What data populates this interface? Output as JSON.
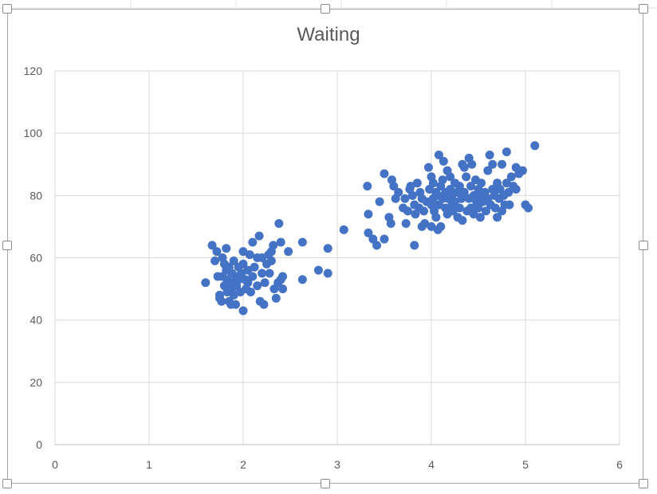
{
  "chart_data": {
    "type": "scatter",
    "title": "Waiting",
    "xlabel": "",
    "ylabel": "",
    "xlim": [
      0,
      6
    ],
    "ylim": [
      0,
      120
    ],
    "x_ticks": [
      "0",
      "1",
      "2",
      "3",
      "4",
      "5",
      "6"
    ],
    "y_ticks": [
      "0",
      "20",
      "40",
      "60",
      "80",
      "100",
      "120"
    ],
    "grid": true,
    "legend": "none",
    "marker_color": "#4472c4",
    "points": [
      [
        1.6,
        52
      ],
      [
        1.67,
        64
      ],
      [
        1.7,
        59
      ],
      [
        1.72,
        62
      ],
      [
        1.73,
        54
      ],
      [
        1.75,
        48
      ],
      [
        1.75,
        47
      ],
      [
        1.77,
        46
      ],
      [
        1.78,
        60
      ],
      [
        1.78,
        54
      ],
      [
        1.8,
        58
      ],
      [
        1.8,
        51
      ],
      [
        1.82,
        56
      ],
      [
        1.82,
        63
      ],
      [
        1.83,
        49
      ],
      [
        1.83,
        53
      ],
      [
        1.85,
        57
      ],
      [
        1.85,
        46
      ],
      [
        1.87,
        45
      ],
      [
        1.87,
        52
      ],
      [
        1.88,
        55
      ],
      [
        1.88,
        50
      ],
      [
        1.9,
        59
      ],
      [
        1.9,
        48
      ],
      [
        1.92,
        54
      ],
      [
        1.92,
        45
      ],
      [
        1.93,
        51
      ],
      [
        1.95,
        57
      ],
      [
        1.95,
        53
      ],
      [
        1.97,
        49
      ],
      [
        1.98,
        55
      ],
      [
        2.0,
        43
      ],
      [
        2.0,
        62
      ],
      [
        2.0,
        58
      ],
      [
        2.02,
        53
      ],
      [
        2.03,
        50
      ],
      [
        2.05,
        56
      ],
      [
        2.05,
        52
      ],
      [
        2.07,
        61
      ],
      [
        2.08,
        49
      ],
      [
        2.1,
        65
      ],
      [
        2.1,
        54
      ],
      [
        2.12,
        57
      ],
      [
        2.15,
        51
      ],
      [
        2.15,
        60
      ],
      [
        2.17,
        67
      ],
      [
        2.18,
        46
      ],
      [
        2.2,
        55
      ],
      [
        2.2,
        60
      ],
      [
        2.22,
        45
      ],
      [
        2.23,
        52
      ],
      [
        2.25,
        58
      ],
      [
        2.27,
        61
      ],
      [
        2.28,
        55
      ],
      [
        2.3,
        62
      ],
      [
        2.3,
        59
      ],
      [
        2.32,
        64
      ],
      [
        2.33,
        50
      ],
      [
        2.35,
        47
      ],
      [
        2.37,
        52
      ],
      [
        2.38,
        71
      ],
      [
        2.4,
        65
      ],
      [
        2.4,
        53
      ],
      [
        2.42,
        50
      ],
      [
        2.42,
        54
      ],
      [
        2.48,
        62
      ],
      [
        2.63,
        65
      ],
      [
        2.63,
        53
      ],
      [
        2.8,
        56
      ],
      [
        2.9,
        63
      ],
      [
        2.9,
        55
      ],
      [
        3.07,
        69
      ],
      [
        3.32,
        83
      ],
      [
        3.33,
        68
      ],
      [
        3.33,
        74
      ],
      [
        3.38,
        66
      ],
      [
        3.42,
        64
      ],
      [
        3.45,
        78
      ],
      [
        3.5,
        87
      ],
      [
        3.5,
        66
      ],
      [
        3.55,
        73
      ],
      [
        3.57,
        71
      ],
      [
        3.58,
        85
      ],
      [
        3.6,
        83
      ],
      [
        3.62,
        79
      ],
      [
        3.65,
        81
      ],
      [
        3.7,
        76
      ],
      [
        3.72,
        79
      ],
      [
        3.73,
        71
      ],
      [
        3.75,
        75
      ],
      [
        3.77,
        82
      ],
      [
        3.78,
        83
      ],
      [
        3.8,
        80
      ],
      [
        3.82,
        64
      ],
      [
        3.82,
        77
      ],
      [
        3.83,
        74
      ],
      [
        3.85,
        84
      ],
      [
        3.87,
        76
      ],
      [
        3.88,
        81
      ],
      [
        3.9,
        79
      ],
      [
        3.9,
        70
      ],
      [
        3.92,
        75
      ],
      [
        3.93,
        71
      ],
      [
        3.95,
        78
      ],
      [
        3.97,
        89
      ],
      [
        3.98,
        82
      ],
      [
        4.0,
        77
      ],
      [
        4.0,
        86
      ],
      [
        4.0,
        70
      ],
      [
        4.02,
        79
      ],
      [
        4.02,
        84
      ],
      [
        4.03,
        75
      ],
      [
        4.05,
        81
      ],
      [
        4.05,
        73
      ],
      [
        4.07,
        69
      ],
      [
        4.07,
        80
      ],
      [
        4.08,
        93
      ],
      [
        4.08,
        77
      ],
      [
        4.1,
        83
      ],
      [
        4.1,
        70
      ],
      [
        4.12,
        79
      ],
      [
        4.12,
        85
      ],
      [
        4.13,
        91
      ],
      [
        4.15,
        76
      ],
      [
        4.15,
        81
      ],
      [
        4.17,
        88
      ],
      [
        4.17,
        74
      ],
      [
        4.18,
        79
      ],
      [
        4.2,
        82
      ],
      [
        4.2,
        86
      ],
      [
        4.22,
        77
      ],
      [
        4.22,
        80
      ],
      [
        4.23,
        75
      ],
      [
        4.25,
        84
      ],
      [
        4.25,
        78
      ],
      [
        4.27,
        81
      ],
      [
        4.28,
        73
      ],
      [
        4.3,
        76
      ],
      [
        4.3,
        83
      ],
      [
        4.32,
        79
      ],
      [
        4.33,
        72
      ],
      [
        4.33,
        90
      ],
      [
        4.35,
        89
      ],
      [
        4.35,
        81
      ],
      [
        4.37,
        86
      ],
      [
        4.38,
        75
      ],
      [
        4.4,
        92
      ],
      [
        4.4,
        79
      ],
      [
        4.42,
        83
      ],
      [
        4.42,
        76
      ],
      [
        4.43,
        90
      ],
      [
        4.45,
        80
      ],
      [
        4.45,
        74
      ],
      [
        4.47,
        85
      ],
      [
        4.48,
        78
      ],
      [
        4.5,
        82
      ],
      [
        4.5,
        76
      ],
      [
        4.52,
        73
      ],
      [
        4.52,
        80
      ],
      [
        4.53,
        84
      ],
      [
        4.55,
        78
      ],
      [
        4.57,
        81
      ],
      [
        4.58,
        75
      ],
      [
        4.6,
        88
      ],
      [
        4.6,
        79
      ],
      [
        4.62,
        93
      ],
      [
        4.63,
        77
      ],
      [
        4.65,
        82
      ],
      [
        4.65,
        90
      ],
      [
        4.67,
        80
      ],
      [
        4.68,
        76
      ],
      [
        4.7,
        84
      ],
      [
        4.7,
        73
      ],
      [
        4.72,
        79
      ],
      [
        4.73,
        82
      ],
      [
        4.75,
        75
      ],
      [
        4.75,
        90
      ],
      [
        4.77,
        80
      ],
      [
        4.78,
        77
      ],
      [
        4.8,
        94
      ],
      [
        4.8,
        84
      ],
      [
        4.82,
        81
      ],
      [
        4.83,
        77
      ],
      [
        4.85,
        86
      ],
      [
        4.87,
        83
      ],
      [
        4.9,
        82
      ],
      [
        4.9,
        89
      ],
      [
        4.93,
        87
      ],
      [
        4.97,
        88
      ],
      [
        5.0,
        77
      ],
      [
        5.03,
        76
      ],
      [
        5.1,
        96
      ]
    ]
  }
}
